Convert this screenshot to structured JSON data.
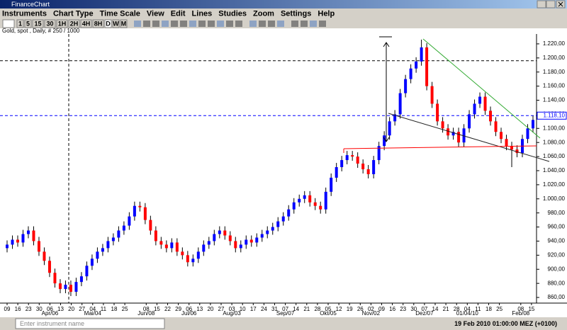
{
  "window": {
    "title": "FinanceChart"
  },
  "menu": [
    "Instruments",
    "Chart Type",
    "Time Scale",
    "View",
    "Edit",
    "Lines",
    "Studies",
    "Zoom",
    "Settings",
    "Help"
  ],
  "toolbar": [
    "1",
    "5",
    "15",
    "30",
    "1H",
    "2H",
    "4H",
    "8H",
    "D",
    "W",
    "M"
  ],
  "status": {
    "placeholder": "Enter instrument name",
    "datetime": "19 Feb 2010 01:00:00 MEZ (+0100)"
  },
  "chart_data": {
    "type": "candlestick",
    "subtitle": "Gold, spot , Daily, # 250 / 1000",
    "up_color": "#0000ff",
    "down_color": "#ff0000",
    "candles": {
      "open": [
        930,
        935,
        942,
        938,
        950,
        955,
        940,
        925,
        912,
        895,
        880,
        872,
        878,
        868,
        882,
        890,
        905,
        915,
        925,
        930,
        940,
        945,
        955,
        962,
        975,
        990,
        988,
        970,
        955,
        940,
        935,
        930,
        938,
        925,
        920,
        910,
        915,
        925,
        935,
        940,
        950,
        955,
        948,
        940,
        930,
        935,
        942,
        938,
        945,
        950,
        955,
        960,
        968,
        975,
        985,
        995,
        1000,
        1005,
        995,
        990,
        985,
        1010,
        1030,
        1045,
        1055,
        1062,
        1060,
        1050,
        1042,
        1035,
        1055,
        1075,
        1090,
        1110,
        1120,
        1150,
        1170,
        1185,
        1195,
        1215,
        1160,
        1135,
        1110,
        1100,
        1090,
        1095,
        1080,
        1100,
        1120,
        1135,
        1145,
        1125,
        1110,
        1095,
        1085,
        1075,
        1070,
        1065,
        1085,
        1100
      ],
      "high": [
        941,
        948,
        948,
        956,
        961,
        961,
        946,
        931,
        918,
        901,
        886,
        884,
        884,
        888,
        896,
        911,
        921,
        931,
        936,
        946,
        951,
        961,
        968,
        981,
        996,
        996,
        994,
        976,
        961,
        946,
        941,
        944,
        944,
        931,
        926,
        921,
        931,
        941,
        946,
        956,
        961,
        961,
        954,
        946,
        941,
        948,
        948,
        951,
        956,
        961,
        966,
        974,
        981,
        991,
        1001,
        1006,
        1011,
        1011,
        1001,
        996,
        1016,
        1036,
        1051,
        1061,
        1068,
        1068,
        1066,
        1056,
        1048,
        1061,
        1081,
        1096,
        1116,
        1126,
        1156,
        1176,
        1191,
        1201,
        1226,
        1221,
        1166,
        1141,
        1116,
        1106,
        1101,
        1101,
        1106,
        1126,
        1141,
        1151,
        1151,
        1131,
        1116,
        1101,
        1091,
        1081,
        1076,
        1091,
        1106,
        1118
      ],
      "low": [
        924,
        929,
        932,
        932,
        944,
        934,
        919,
        906,
        889,
        874,
        866,
        866,
        862,
        862,
        876,
        884,
        899,
        909,
        919,
        924,
        934,
        939,
        949,
        956,
        969,
        982,
        964,
        949,
        934,
        929,
        924,
        924,
        919,
        914,
        904,
        904,
        909,
        919,
        929,
        934,
        944,
        942,
        934,
        924,
        924,
        929,
        932,
        932,
        939,
        944,
        949,
        954,
        962,
        969,
        979,
        989,
        994,
        989,
        984,
        979,
        979,
        1004,
        1024,
        1039,
        1049,
        1054,
        1044,
        1036,
        1029,
        1029,
        1049,
        1069,
        1084,
        1104,
        1114,
        1144,
        1164,
        1179,
        1189,
        1154,
        1129,
        1104,
        1094,
        1084,
        1084,
        1074,
        1074,
        1094,
        1114,
        1129,
        1119,
        1104,
        1089,
        1079,
        1069,
        1045,
        1059,
        1059,
        1079,
        1094
      ],
      "close": [
        935,
        942,
        938,
        950,
        955,
        940,
        925,
        912,
        895,
        880,
        872,
        878,
        868,
        882,
        890,
        905,
        915,
        925,
        930,
        940,
        945,
        955,
        962,
        975,
        990,
        988,
        970,
        955,
        940,
        935,
        930,
        938,
        925,
        920,
        910,
        915,
        925,
        935,
        940,
        950,
        955,
        948,
        940,
        930,
        935,
        942,
        938,
        945,
        950,
        955,
        960,
        968,
        975,
        985,
        995,
        1000,
        1005,
        995,
        990,
        985,
        1010,
        1030,
        1045,
        1055,
        1062,
        1060,
        1050,
        1042,
        1035,
        1055,
        1075,
        1090,
        1110,
        1120,
        1150,
        1170,
        1185,
        1195,
        1215,
        1160,
        1135,
        1110,
        1100,
        1090,
        1095,
        1080,
        1100,
        1120,
        1135,
        1145,
        1125,
        1110,
        1095,
        1085,
        1075,
        1070,
        1065,
        1085,
        1100,
        1112
      ]
    },
    "ylim": [
      852,
      1234
    ],
    "yticks": [
      {
        "value": 860,
        "label": "860,00"
      },
      {
        "value": 880,
        "label": "880,00"
      },
      {
        "value": 900,
        "label": "900,00"
      },
      {
        "value": 920,
        "label": "920,00"
      },
      {
        "value": 940,
        "label": "940,00"
      },
      {
        "value": 960,
        "label": "960,00"
      },
      {
        "value": 980,
        "label": "980,00"
      },
      {
        "value": 1000,
        "label": "1.000,00"
      },
      {
        "value": 1020,
        "label": "1.020,00"
      },
      {
        "value": 1040,
        "label": "1.040,00"
      },
      {
        "value": 1060,
        "label": "1.060,00"
      },
      {
        "value": 1080,
        "label": "1.080,00"
      },
      {
        "value": 1100,
        "label": "1.100,00"
      },
      {
        "value": 1120,
        "label": "1.120,00"
      },
      {
        "value": 1140,
        "label": "1.140,00"
      },
      {
        "value": 1160,
        "label": "1.160,00"
      },
      {
        "value": 1180,
        "label": "1.180,00"
      },
      {
        "value": 1200,
        "label": "1.200,00"
      },
      {
        "value": 1220,
        "label": "1.220,00"
      }
    ],
    "levels": [
      {
        "value": 1196,
        "color": "#000000"
      },
      {
        "value": 1118.1,
        "label": "1.118,10",
        "color": "#0000ff"
      }
    ],
    "day_labels": [
      "09",
      "16",
      "23",
      "30",
      "06",
      "13",
      "20",
      "27",
      "04",
      "11",
      "18",
      "25",
      "08",
      "15",
      "22",
      "29",
      "06",
      "13",
      "20",
      "27",
      "03",
      "10",
      "17",
      "24",
      "31",
      "07",
      "14",
      "21",
      "28",
      "05",
      "12",
      "19",
      "26",
      "02",
      "09",
      "16",
      "23",
      "30",
      "07",
      "14",
      "21",
      "28",
      "04",
      "11",
      "18",
      "25",
      "08",
      "15"
    ],
    "month_labels": [
      "Apr/06",
      "Mai/04",
      "Jun/08",
      "Jul/06",
      "Aug/03",
      "Sep/07",
      "Okt/05",
      "Nov/02",
      "Dez/07",
      "01/04/10",
      "Feb/08"
    ]
  }
}
